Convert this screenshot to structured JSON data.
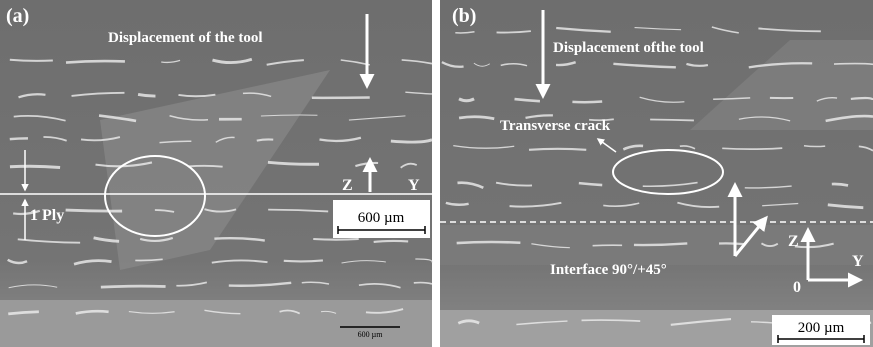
{
  "panels": [
    {
      "label": "(a)",
      "tool_arrow": "Displacement of the tool",
      "axis_z": "Z",
      "axis_y": "Y",
      "scale_box": "600 µm",
      "ply": "1 Ply",
      "scale_bar": "600 µm"
    },
    {
      "label": "(b)",
      "tool_arrow": "Displacement ofthe tool",
      "crack": "Transverse crack",
      "interface": "Interface 90°/+45°",
      "axis_z": "Z",
      "axis_y": "Y",
      "origin": "0",
      "scale_box": "200 µm"
    }
  ]
}
